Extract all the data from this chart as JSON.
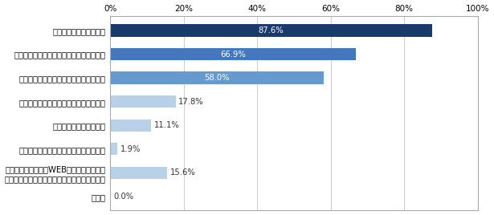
{
  "categories": [
    "その他",
    "その他のサービス（WEBサイトやアプリの\n使いやすさ、ロボアドなどの投資ツールなど）",
    "自宅や職場の近所などに店舗があること",
    "投資の相談ができること",
    "ブランド（経営の健全性・安心感など）",
    "商品ラインナップ（投資信託）の充実度",
    "商品（投資信託）の信託報酬などの手数料",
    "口座管理料などの手数料"
  ],
  "values": [
    0.0,
    15.6,
    1.9,
    11.1,
    17.8,
    58.0,
    66.9,
    87.6
  ],
  "bar_colors": [
    "#b8d0e8",
    "#b8d0e8",
    "#b8d0e8",
    "#b8d0e8",
    "#b8d0e8",
    "#6699cc",
    "#4477bb",
    "#1a3a6b"
  ],
  "xlim": [
    0,
    100
  ],
  "xticks": [
    0,
    20,
    40,
    60,
    80,
    100
  ],
  "xticklabels": [
    "0%",
    "20%",
    "40%",
    "60%",
    "80%",
    "100%"
  ],
  "label_fontsize": 7.2,
  "value_fontsize": 7.2,
  "tick_fontsize": 7.5,
  "bar_height": 0.52,
  "background_color": "#ffffff",
  "grid_color": "#cccccc",
  "value_labels": [
    "0.0%",
    "15.6%",
    "1.9%",
    "11.1%",
    "17.8%",
    "58.0%",
    "66.9%",
    "87.6%"
  ],
  "inside_label_threshold": 30
}
